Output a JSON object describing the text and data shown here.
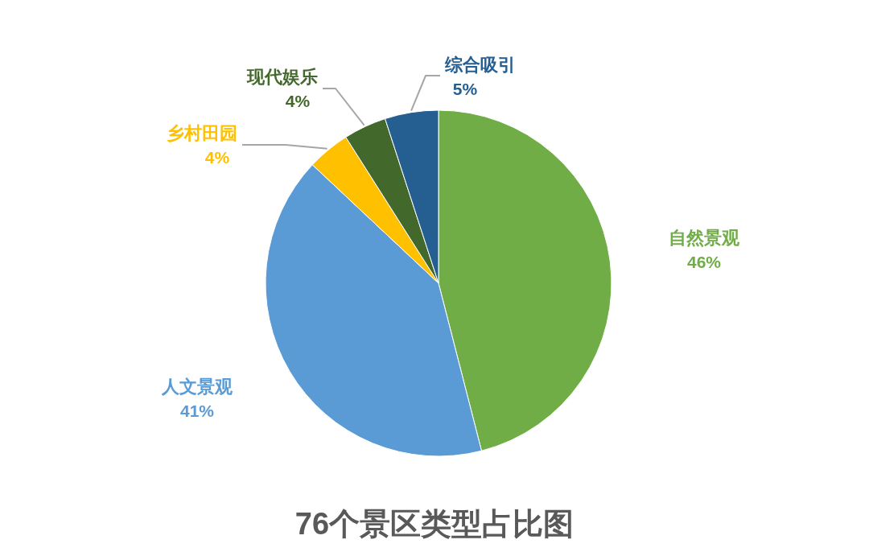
{
  "chart_data": {
    "type": "pie",
    "title": "76个景区类型占比图",
    "categories": [
      "自然景观",
      "人文景观",
      "乡村田园",
      "现代娱乐",
      "综合吸引"
    ],
    "values": [
      46,
      41,
      4,
      4,
      5
    ],
    "colors": [
      "#70ad47",
      "#5b9bd5",
      "#ffc000",
      "#43682b",
      "#255e91"
    ],
    "value_labels": [
      "46%",
      "41%",
      "4%",
      "4%",
      "5%"
    ]
  }
}
